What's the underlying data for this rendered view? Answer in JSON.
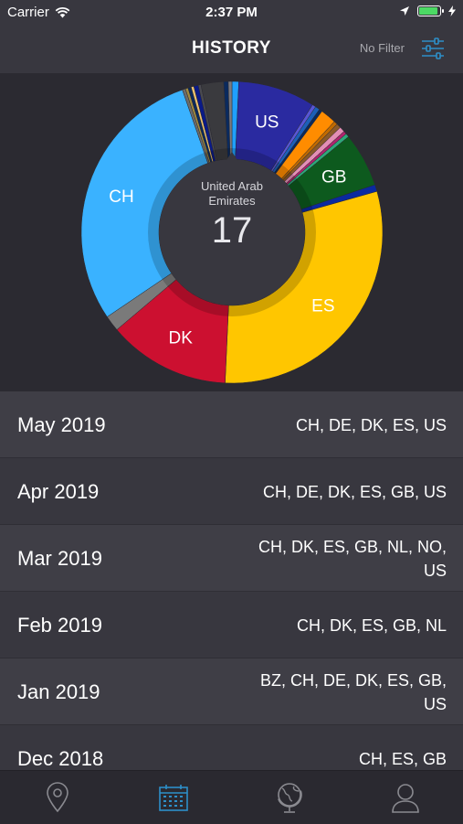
{
  "status_bar": {
    "carrier": "Carrier",
    "time": "2:37 PM",
    "battery_level": 0.95,
    "icons": [
      "wifi-icon",
      "location-arrow-icon",
      "battery-icon",
      "charging-bolt-icon"
    ]
  },
  "nav": {
    "title": "HISTORY",
    "filter_label": "No Filter",
    "filter_icon": "sliders-icon"
  },
  "chart": {
    "center_label": "United Arab Emirates",
    "center_value": "17",
    "colors": {
      "ring_bg": "#2b2a31",
      "inner_circle": "#38373f"
    }
  },
  "chart_data": {
    "type": "pie",
    "variant": "donut",
    "slices": [
      {
        "label": "",
        "value": 1.5,
        "color": "#1fa0ff"
      },
      {
        "label": "US",
        "value": 17,
        "color": "#2a2aa0"
      },
      {
        "label": "",
        "value": 0.8,
        "color": "#5856d6"
      },
      {
        "label": "",
        "value": 1.0,
        "color": "#1c5fb8"
      },
      {
        "label": "",
        "value": 0.7,
        "color": "#0a2a5e"
      },
      {
        "label": "",
        "value": 3.5,
        "color": "#ff8c00"
      },
      {
        "label": "",
        "value": 0.8,
        "color": "#c06a00"
      },
      {
        "label": "",
        "value": 1.0,
        "color": "#8a5a2a"
      },
      {
        "label": "",
        "value": 1.2,
        "color": "#e38fb5"
      },
      {
        "label": "",
        "value": 0.7,
        "color": "#b0246e"
      },
      {
        "label": "",
        "value": 0.8,
        "color": "#2ea87a"
      },
      {
        "label": "GB",
        "value": 12,
        "color": "#0d5a1e"
      },
      {
        "label": "",
        "value": 1.5,
        "color": "#0a2aa0"
      },
      {
        "label": "ES",
        "value": 62,
        "color": "#ffc600"
      },
      {
        "label": "DK",
        "value": 27,
        "color": "#cc1030"
      },
      {
        "label": "",
        "value": 3.5,
        "color": "#7a7a7a"
      },
      {
        "label": "CH",
        "value": 60,
        "color": "#3ab2ff"
      },
      {
        "label": "",
        "value": 0.7,
        "color": "#6b6b6b"
      },
      {
        "label": "",
        "value": 0.6,
        "color": "#a08a40"
      },
      {
        "label": "",
        "value": 0.7,
        "color": "#0a2a5e"
      },
      {
        "label": "",
        "value": 0.6,
        "color": "#e8c070"
      },
      {
        "label": "",
        "value": 1.0,
        "color": "#0a1a88"
      },
      {
        "label": "",
        "value": 0.6,
        "color": "#4a4a50"
      },
      {
        "label": "",
        "value": 5.0,
        "color": "#3a3a3e"
      },
      {
        "label": "",
        "value": 1.0,
        "color": "#0a2a5e"
      },
      {
        "label": "",
        "value": 0.8,
        "color": "#7a7a80"
      }
    ]
  },
  "history": [
    {
      "month": "May 2019",
      "countries": "CH, DE, DK, ES, US"
    },
    {
      "month": "Apr 2019",
      "countries": "CH, DE, DK, ES, GB, US"
    },
    {
      "month": "Mar 2019",
      "countries": "CH, DK, ES, GB, NL, NO, US"
    },
    {
      "month": "Feb 2019",
      "countries": "CH, DK, ES, GB, NL"
    },
    {
      "month": "Jan 2019",
      "countries": "BZ, CH, DE, DK, ES, GB, US"
    },
    {
      "month": "Dec 2018",
      "countries": "CH, ES, GB"
    }
  ],
  "tabs": [
    {
      "name": "map",
      "icon": "map-pin-icon",
      "active": false
    },
    {
      "name": "history",
      "icon": "calendar-icon",
      "active": true
    },
    {
      "name": "countries",
      "icon": "globe-icon",
      "active": false
    },
    {
      "name": "profile",
      "icon": "person-icon",
      "active": false
    }
  ],
  "colors": {
    "accent": "#2d8fc8",
    "tab_inactive": "#8a8a90"
  }
}
